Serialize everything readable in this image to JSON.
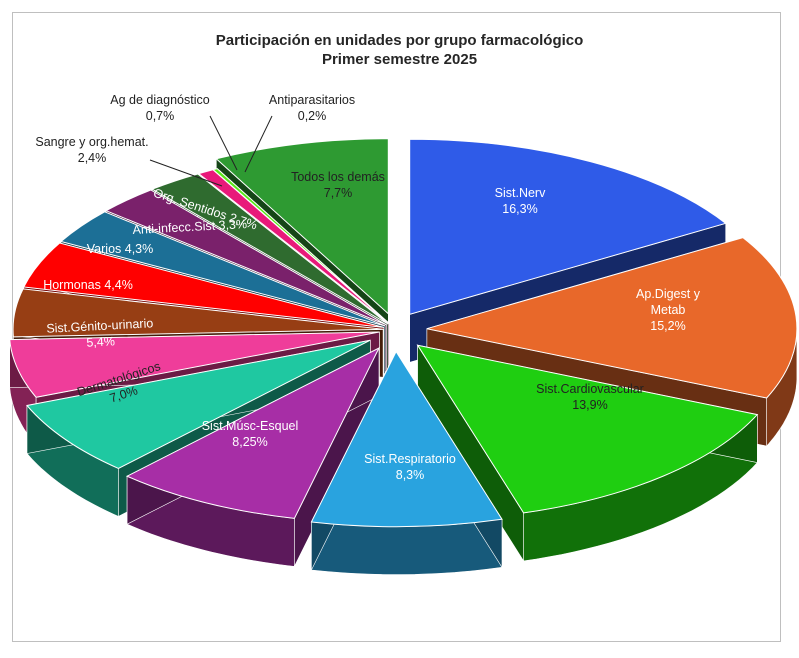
{
  "chart_data": {
    "type": "pie",
    "title": "Participación en unidades por grupo farmacológico",
    "subtitle": "Primer semestre 2025",
    "slices": [
      {
        "label": "Sist.Nerv",
        "value_label": "16,3%",
        "value": 16.3,
        "color": "#2f5be8"
      },
      {
        "label": "Ap.Digest y Metab",
        "value_label": "15,2%",
        "value": 15.2,
        "color": "#e8682a"
      },
      {
        "label": "Sist.Cardiovascular",
        "value_label": "13,9%",
        "value": 13.9,
        "color": "#1fce11"
      },
      {
        "label": "Sist.Respiratorio",
        "value_label": "8,3%",
        "value": 8.3,
        "color": "#29a3df"
      },
      {
        "label": "Sist.Músc-Esquel",
        "value_label": "8,25%",
        "value": 8.25,
        "color": "#a72ea6"
      },
      {
        "label": "Dermatológicos",
        "value_label": "7,0%",
        "value": 7.0,
        "color": "#1fc8a1"
      },
      {
        "label": "Sist.Génito-urinario",
        "value_label": "5,4%",
        "value": 5.4,
        "color": "#ef3d9a"
      },
      {
        "label": "Hormonas",
        "value_label": "4,4%",
        "value": 4.4,
        "color": "#973e14"
      },
      {
        "label": "Varios",
        "value_label": "4,3%",
        "value": 4.3,
        "color": "#ff0000"
      },
      {
        "label": "Anti-infecc.Sist",
        "value_label": "3,3%",
        "value": 3.3,
        "color": "#1c6f96"
      },
      {
        "label": "Org. Sentidos",
        "value_label": "2,7%",
        "value": 2.7,
        "color": "#7a216b"
      },
      {
        "label": "Sangre y org.hemat.",
        "value_label": "2,4%",
        "value": 2.4,
        "color": "#2f6b2f"
      },
      {
        "label": "Ag de diagnóstico",
        "value_label": "0,7%",
        "value": 0.7,
        "color": "#e8197a"
      },
      {
        "label": "Antiparasitarios",
        "value_label": "0,2%",
        "value": 0.2,
        "color": "#58e81a"
      },
      {
        "label": "Todos los demás",
        "value_label": "7,7%",
        "value": 7.7,
        "color": "#2e9a32"
      }
    ]
  }
}
